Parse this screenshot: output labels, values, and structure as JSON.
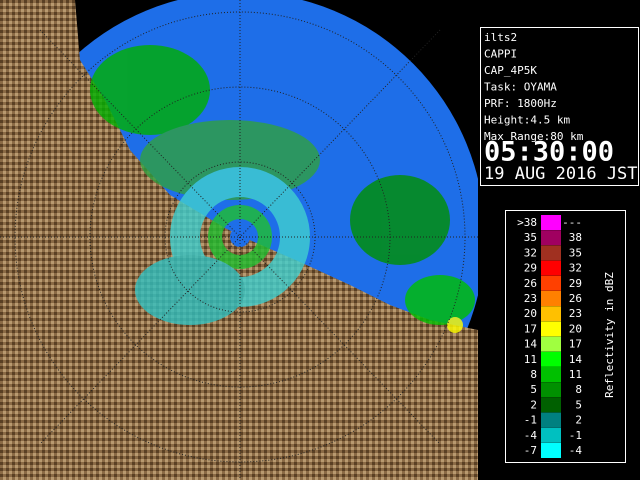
{
  "info": {
    "lines": [
      "ilts2",
      "CAPPI",
      "CAP_4P5K",
      "Task: OYAMA",
      "PRF: 1800Hz",
      "Height:4.5 km",
      "Max Range:80 km"
    ],
    "time": "05:30:00",
    "date": "19 AUG 2016 JST"
  },
  "legend": {
    "title": "Reflectivity in dBZ",
    "rows": [
      {
        "low": ">38",
        "high": "---",
        "color": "#ff00ff"
      },
      {
        "low": "35",
        "high": "38",
        "color": "#a00060"
      },
      {
        "low": "32",
        "high": "35",
        "color": "#a03020"
      },
      {
        "low": "29",
        "high": "32",
        "color": "#ff0000"
      },
      {
        "low": "26",
        "high": "29",
        "color": "#ff4000"
      },
      {
        "low": "23",
        "high": "26",
        "color": "#ff8000"
      },
      {
        "low": "20",
        "high": "23",
        "color": "#ffc000"
      },
      {
        "low": "17",
        "high": "20",
        "color": "#ffff00"
      },
      {
        "low": "14",
        "high": "17",
        "color": "#a0ff40"
      },
      {
        "low": "11",
        "high": "14",
        "color": "#00ff00"
      },
      {
        "low": "8",
        "high": "11",
        "color": "#00c000"
      },
      {
        "low": "5",
        "high": "8",
        "color": "#009000"
      },
      {
        "low": "2",
        "high": "5",
        "color": "#006000"
      },
      {
        "low": "-1",
        "high": "2",
        "color": "#008080"
      },
      {
        "low": "-4",
        "high": "-1",
        "color": "#00c0c0"
      },
      {
        "low": "-7",
        "high": "-4",
        "color": "#00ffff"
      }
    ]
  }
}
